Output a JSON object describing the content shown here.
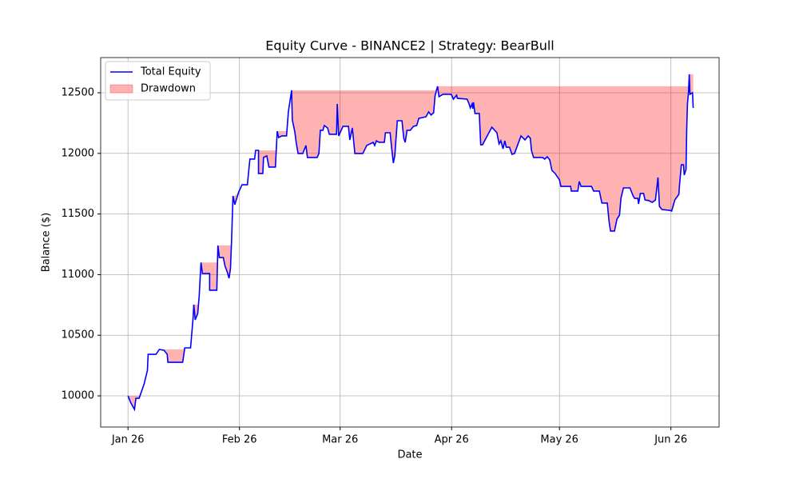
{
  "chart_data": {
    "type": "line",
    "title": "Equity Curve - BINANCE2 | Strategy: BearBull",
    "xlabel": "Date",
    "ylabel": "Balance ($)",
    "x": [
      0,
      0.7,
      1.8,
      2.2,
      3.1,
      4.5,
      5.4,
      5.6,
      7.8,
      8.7,
      10.0,
      10.9,
      11.1,
      15.2,
      15.8,
      17.4,
      18.1,
      18.3,
      18.7,
      19.4,
      19.8,
      20.3,
      20.7,
      22.7,
      22.7,
      24.7,
      25.0,
      25.4,
      26.5,
      27.0,
      27.6,
      28.1,
      28.5,
      28.8,
      29.2,
      29.7,
      30.8,
      31.7,
      33.2,
      33.9,
      35.2,
      35.5,
      36.3,
      36.3,
      37.5,
      37.7,
      38.6,
      39.2,
      41.0,
      41.5,
      41.9,
      42.8,
      44.1,
      44.6,
      45.5,
      45.7,
      46.4,
      46.8,
      47.3,
      48.6,
      49.5,
      49.9,
      52.6,
      53.1,
      53.5,
      54.2,
      54.6,
      55.5,
      56.0,
      58.0,
      58.2,
      58.6,
      59.8,
      61.3,
      61.7,
      62.4,
      63.1,
      65.3,
      66.4,
      68.2,
      68.6,
      69.1,
      69.8,
      71.3,
      71.6,
      72.9,
      73.4,
      73.8,
      74.2,
      74.9,
      76.2,
      76.7,
      77.1,
      77.6,
      78.5,
      79.4,
      80.3,
      80.9,
      82.1,
      82.9,
      83.6,
      84.3,
      85.0,
      85.4,
      86.1,
      86.5,
      87.6,
      89.9,
      90.5,
      91.4,
      91.6,
      94.3,
      94.8,
      95.2,
      95.7,
      95.9,
      96.1,
      96.5,
      97.7,
      98.1,
      98.6,
      101.2,
      102.6,
      103.2,
      103.7,
      104.3,
      104.8,
      105.2,
      106.1,
      106.8,
      107.5,
      109.3,
      110.4,
      111.3,
      111.9,
      112.2,
      112.8,
      115.3,
      115.9,
      116.6,
      117.3,
      117.9,
      118.8,
      120.0,
      120.4,
      123.1,
      123.3,
      125.1,
      125.5,
      126.0,
      128.9,
      129.5,
      131.1,
      131.8,
      133.3,
      133.8,
      134.2,
      135.3,
      136.0,
      136.7,
      137.1,
      137.8,
      139.6,
      140.5,
      140.9,
      141.8,
      142.0,
      142.5,
      143.4,
      143.8,
      144.9,
      145.8,
      146.7,
      147.4,
      147.8,
      148.5,
      150.7,
      151.2,
      152.1,
      153.2,
      153.4,
      153.9,
      154.5,
      154.7,
      155.2,
      155.4,
      155.6,
      155.9,
      156.1,
      156.3,
      157.0,
      157.2
    ],
    "series": [
      {
        "name": "Total Equity",
        "color": "#0000ff",
        "values": [
          10000,
          9947,
          9888,
          9980,
          9980,
          10100,
          10210,
          10343,
          10343,
          10383,
          10376,
          10343,
          10277,
          10277,
          10396,
          10396,
          10640,
          10752,
          10627,
          10680,
          10824,
          11100,
          11009,
          11009,
          10871,
          10871,
          11240,
          11141,
          11141,
          11069,
          11022,
          10970,
          11049,
          11273,
          11649,
          11577,
          11682,
          11741,
          11741,
          11953,
          11953,
          12025,
          12025,
          11834,
          11834,
          11966,
          11979,
          11887,
          11887,
          12183,
          12131,
          12144,
          12144,
          12342,
          12520,
          12276,
          12177,
          12085,
          11999,
          11999,
          12065,
          11966,
          11966,
          11999,
          12190,
          12190,
          12230,
          12210,
          12157,
          12157,
          12408,
          12144,
          12223,
          12223,
          12111,
          12210,
          11999,
          11999,
          12065,
          12091,
          12065,
          12104,
          12091,
          12091,
          12170,
          12170,
          12025,
          11920,
          11979,
          12269,
          12269,
          12124,
          12091,
          12190,
          12190,
          12223,
          12230,
          12289,
          12296,
          12302,
          12342,
          12316,
          12335,
          12474,
          12553,
          12467,
          12487,
          12487,
          12447,
          12480,
          12454,
          12447,
          12414,
          12375,
          12408,
          12368,
          12421,
          12329,
          12329,
          12071,
          12071,
          12216,
          12170,
          12078,
          12104,
          12038,
          12104,
          12051,
          12051,
          11992,
          11999,
          12144,
          12111,
          12144,
          12124,
          12025,
          11966,
          11966,
          11953,
          11972,
          11946,
          11860,
          11834,
          11781,
          11728,
          11728,
          11689,
          11689,
          11768,
          11728,
          11728,
          11689,
          11689,
          11590,
          11590,
          11438,
          11359,
          11359,
          11458,
          11491,
          11629,
          11715,
          11715,
          11649,
          11629,
          11629,
          11583,
          11669,
          11669,
          11616,
          11610,
          11596,
          11616,
          11801,
          11563,
          11537,
          11530,
          11524,
          11616,
          11662,
          11741,
          11906,
          11906,
          11821,
          11867,
          12210,
          12408,
          12507,
          12652,
          12487,
          12500,
          12375
        ]
      }
    ],
    "drawdown": {
      "name": "Drawdown",
      "color": "#ff0000",
      "opacity": 0.3
    },
    "xlim": [
      -7.6,
      164.4
    ],
    "xticks": [
      {
        "value": 0,
        "label": "Jan 26"
      },
      {
        "value": 31,
        "label": "Feb 26"
      },
      {
        "value": 59,
        "label": "Mar 26"
      },
      {
        "value": 90,
        "label": "Apr 26"
      },
      {
        "value": 120,
        "label": "May 26"
      },
      {
        "value": 151,
        "label": "Jun 26"
      }
    ],
    "ylim": [
      9743,
      12790
    ],
    "yticks": [
      10000,
      10500,
      11000,
      11500,
      12000,
      12500
    ],
    "grid": true,
    "legend": "upper left"
  }
}
